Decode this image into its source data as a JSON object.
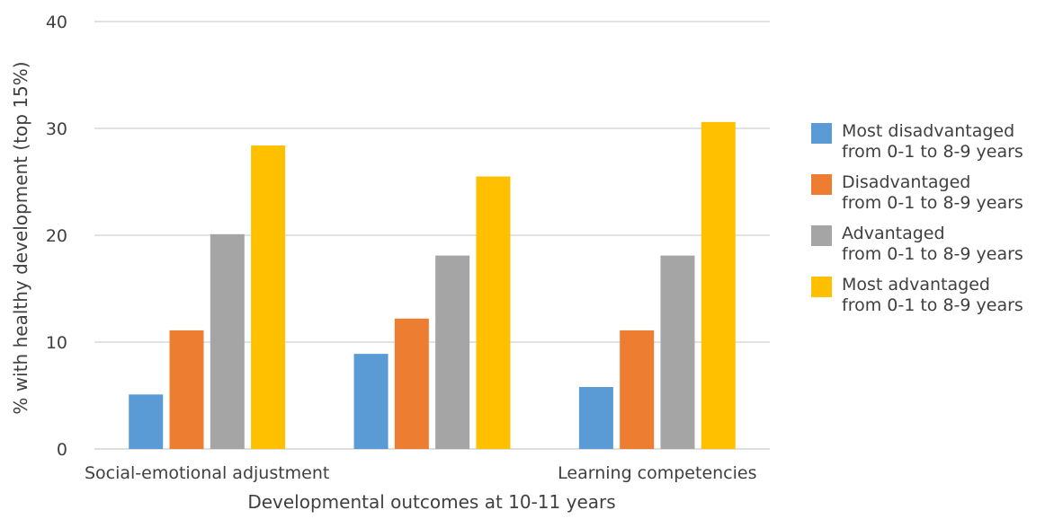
{
  "chart_data": {
    "type": "bar",
    "categories": [
      "Social-emotional adjustment",
      "",
      "Learning competencies"
    ],
    "series": [
      {
        "name": "Most disadvantaged\nfrom 0-1 to 8-9 years",
        "color": "#5B9BD5",
        "values": [
          5.1,
          8.9,
          5.8
        ]
      },
      {
        "name": "Disadvantaged\nfrom 0-1 to 8-9 years",
        "color": "#ED7D31",
        "values": [
          11.1,
          12.2,
          11.1
        ]
      },
      {
        "name": "Advantaged\nfrom 0-1 to 8-9 years",
        "color": "#A5A5A5",
        "values": [
          20.1,
          18.1,
          18.1
        ]
      },
      {
        "name": "Most advantaged\nfrom 0-1 to 8-9 years",
        "color": "#FFC000",
        "values": [
          28.4,
          25.5,
          30.6
        ]
      }
    ],
    "xlabel": "Developmental outcomes at 10-11 years",
    "ylabel": "% with healthy development (top 15%)",
    "ylim": [
      0,
      40
    ],
    "yticks": [
      "0",
      "10",
      "20",
      "30",
      "40"
    ],
    "grid": true,
    "legend_position": "right"
  }
}
